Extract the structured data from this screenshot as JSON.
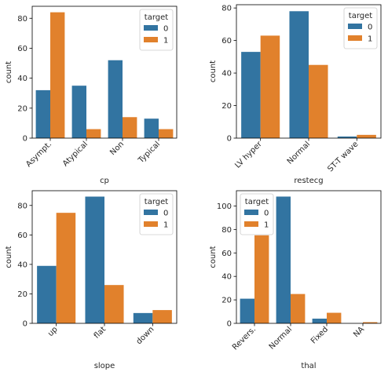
{
  "colors": {
    "series0": "#3274a1",
    "series1": "#e1812c"
  },
  "chart_data": [
    {
      "type": "bar",
      "title": "",
      "xlabel": "cp",
      "ylabel": "count",
      "categories": [
        "Asympt.",
        "Atypical",
        "Non",
        "Typical"
      ],
      "ylim": [
        0,
        88
      ],
      "yticks": [
        0,
        20,
        40,
        60,
        80
      ],
      "legend": {
        "title": "target",
        "position": "top-right"
      },
      "series": [
        {
          "name": "0",
          "values": [
            32,
            35,
            52,
            13
          ]
        },
        {
          "name": "1",
          "values": [
            84,
            6,
            14,
            6
          ]
        }
      ]
    },
    {
      "type": "bar",
      "title": "",
      "xlabel": "restecg",
      "ylabel": "count",
      "categories": [
        "LV hyper",
        "Normal",
        "ST-T wave"
      ],
      "ylim": [
        0,
        82
      ],
      "yticks": [
        0,
        20,
        40,
        60,
        80
      ],
      "legend": {
        "title": "target",
        "position": "top-right"
      },
      "series": [
        {
          "name": "0",
          "values": [
            53,
            78,
            1
          ]
        },
        {
          "name": "1",
          "values": [
            63,
            45,
            2
          ]
        }
      ]
    },
    {
      "type": "bar",
      "title": "",
      "xlabel": "slope",
      "ylabel": "count",
      "categories": [
        "up",
        "flat",
        "down"
      ],
      "ylim": [
        0,
        90
      ],
      "yticks": [
        0,
        20,
        40,
        60,
        80
      ],
      "legend": {
        "title": "target",
        "position": "top-right"
      },
      "series": [
        {
          "name": "0",
          "values": [
            39,
            86,
            7
          ]
        },
        {
          "name": "1",
          "values": [
            75,
            26,
            9
          ]
        }
      ]
    },
    {
      "type": "bar",
      "title": "",
      "xlabel": "thal",
      "ylabel": "count",
      "categories": [
        "Revers.",
        "Normal",
        "Fixed",
        "NA"
      ],
      "ylim": [
        0,
        113
      ],
      "yticks": [
        0,
        20,
        40,
        60,
        80,
        100
      ],
      "legend": {
        "title": "target",
        "position": "top-left"
      },
      "series": [
        {
          "name": "0",
          "values": [
            21,
            108,
            4,
            0
          ]
        },
        {
          "name": "1",
          "values": [
            75,
            25,
            9,
            1
          ]
        }
      ]
    }
  ]
}
